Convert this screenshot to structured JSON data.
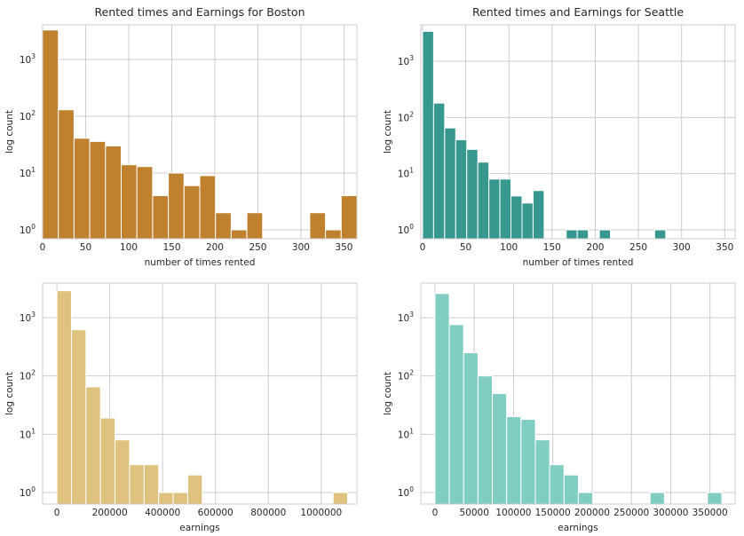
{
  "chart_data": [
    {
      "type": "bar",
      "title": "Rented times and Earnings for Boston",
      "xlabel": "number of times rented",
      "ylabel": "log count",
      "yscale": "log",
      "grid": true,
      "color": "#c0812f",
      "xlim": [
        0,
        365
      ],
      "xticks": [
        0,
        50,
        100,
        150,
        200,
        250,
        300,
        350
      ],
      "xtick_labels": [
        "0",
        "50",
        "100",
        "150",
        "200",
        "250",
        "300",
        "350"
      ],
      "bin_edges": [
        0,
        18.25,
        36.5,
        54.75,
        73,
        91.25,
        109.5,
        127.75,
        146,
        164.25,
        182.5,
        200.75,
        219,
        237.25,
        255.5,
        273.75,
        292,
        310.25,
        328.5,
        346.75,
        365
      ],
      "counts": [
        3300,
        130,
        41,
        36,
        30,
        14,
        13,
        4,
        10,
        6,
        9,
        2,
        1,
        2,
        0,
        0,
        0,
        2,
        1,
        4
      ]
    },
    {
      "type": "bar",
      "title": "Rented times and Earnings for Seattle",
      "xlabel": "number of times rented",
      "ylabel": "log count",
      "yscale": "log",
      "grid": true,
      "color": "#379890",
      "xlim": [
        -2,
        362
      ],
      "xticks": [
        0,
        50,
        100,
        150,
        200,
        250,
        300,
        350
      ],
      "xtick_labels": [
        "0",
        "50",
        "100",
        "150",
        "200",
        "250",
        "300",
        "350"
      ],
      "bin_edges": [
        0,
        12.8,
        25.6,
        38.4,
        51.2,
        64,
        76.8,
        89.6,
        102.4,
        115.2,
        128,
        140.8,
        153.6,
        166.4,
        179.2,
        192,
        204.8,
        217.6,
        230.4,
        243.2,
        256,
        268.8,
        281.6
      ],
      "counts": [
        3400,
        180,
        65,
        40,
        27,
        16,
        8,
        8,
        4,
        3,
        5,
        0,
        0,
        1,
        1,
        0,
        1,
        0,
        0,
        0,
        0,
        1
      ]
    },
    {
      "type": "bar",
      "title": "",
      "xlabel": "earnings",
      "ylabel": "log count",
      "yscale": "log",
      "grid": true,
      "color": "#dfc27d",
      "xlim": [
        -54000,
        1135000
      ],
      "xticks": [
        0,
        200000,
        400000,
        600000,
        800000,
        1000000
      ],
      "xtick_labels": [
        "0",
        "200000",
        "400000",
        "600000",
        "800000",
        "1000000"
      ],
      "bin_edges": [
        0,
        55000,
        110000,
        165000,
        220000,
        275000,
        330000,
        385000,
        440000,
        495000,
        550000,
        605000,
        660000,
        715000,
        770000,
        825000,
        880000,
        935000,
        990000,
        1045000,
        1100000
      ],
      "counts": [
        2900,
        620,
        65,
        19,
        8,
        3,
        3,
        1,
        1,
        2,
        0,
        0,
        0,
        0,
        0,
        0,
        0,
        0,
        0,
        1
      ]
    },
    {
      "type": "bar",
      "title": "",
      "xlabel": "earnings",
      "ylabel": "log count",
      "yscale": "log",
      "grid": true,
      "color": "#80cdc1",
      "xlim": [
        -18000,
        382000
      ],
      "xticks": [
        0,
        50000,
        100000,
        150000,
        200000,
        250000,
        300000,
        350000
      ],
      "xtick_labels": [
        "0",
        "50000",
        "100000",
        "150000",
        "200000",
        "250000",
        "300000",
        "350000"
      ],
      "bin_edges": [
        0,
        18250,
        36500,
        54750,
        73000,
        91250,
        109500,
        127750,
        146000,
        164250,
        182500,
        200750,
        219000,
        237250,
        255500,
        273750,
        292000,
        310250,
        328500,
        346750,
        365000
      ],
      "counts": [
        2600,
        760,
        250,
        100,
        50,
        20,
        18,
        8,
        3,
        2,
        1,
        0,
        0,
        0,
        0,
        1,
        0,
        0,
        0,
        1
      ]
    }
  ]
}
